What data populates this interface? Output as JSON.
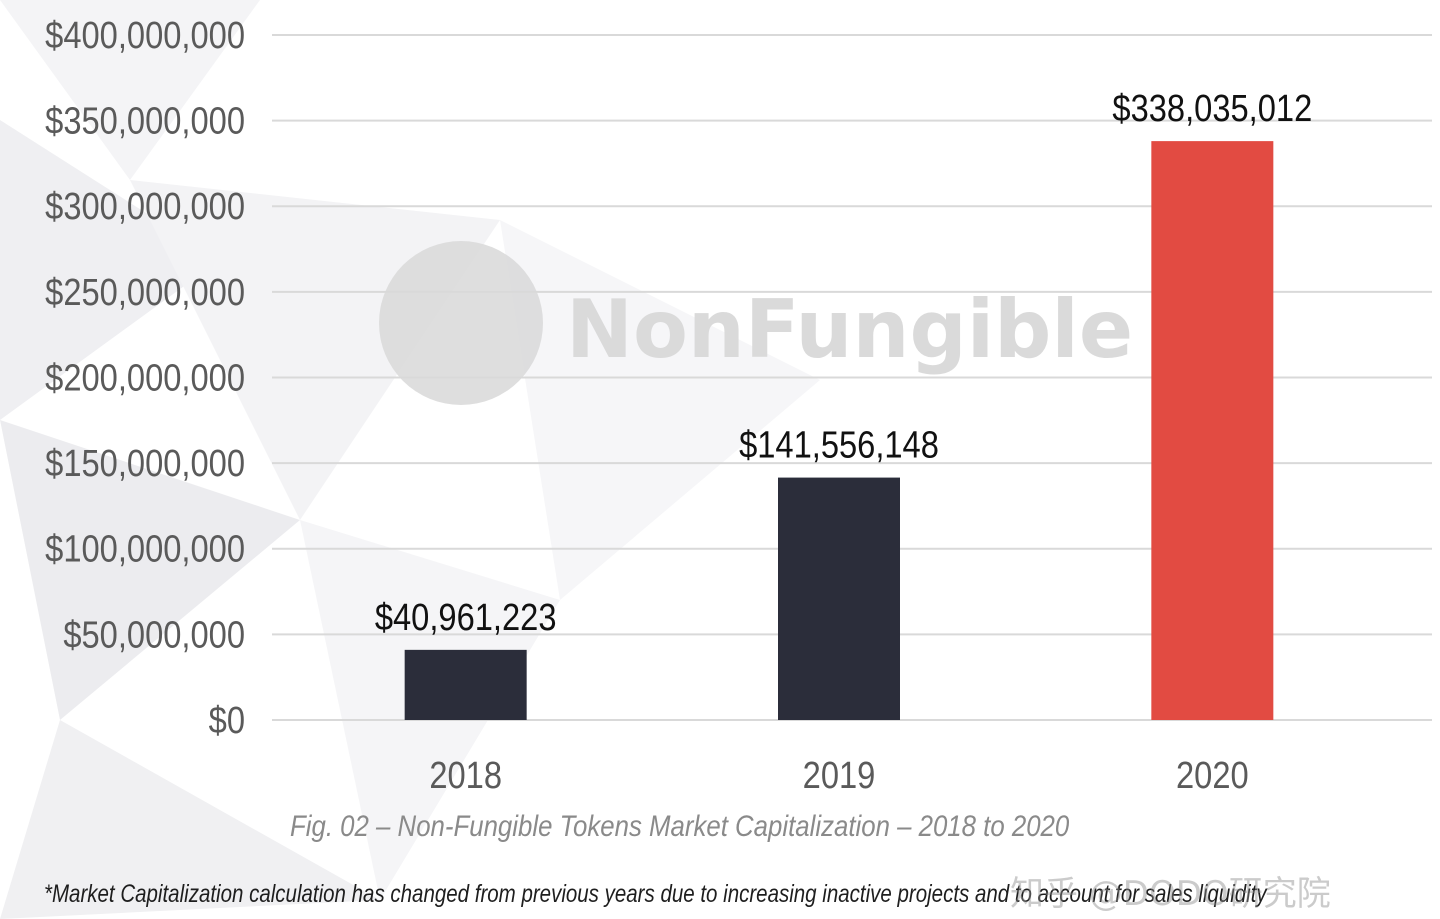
{
  "watermark": {
    "text": "NonFungible"
  },
  "chart_data": {
    "type": "bar",
    "categories": [
      "2018",
      "2019",
      "2020"
    ],
    "values": [
      40961223,
      141556148,
      338035012
    ],
    "data_labels": [
      "$40,961,223",
      "$141,556,148",
      "$338,035,012"
    ],
    "ylim": [
      0,
      400000000
    ],
    "yticks": [
      0,
      50000000,
      100000000,
      150000000,
      200000000,
      250000000,
      300000000,
      350000000,
      400000000
    ],
    "ytick_labels": [
      "$0",
      "$50,000,000",
      "$100,000,000",
      "$150,000,000",
      "$200,000,000",
      "$250,000,000",
      "$300,000,000",
      "$350,000,000",
      "$400,000,000"
    ],
    "grid": true,
    "bar_colors": [
      "#2b2d3a",
      "#2b2d3a",
      "#e24b42"
    ],
    "title": "",
    "xlabel": "",
    "ylabel": ""
  },
  "caption": "Fig. 02 – Non-Fungible Tokens Market Capitalization – 2018 to 2020",
  "footnote": "*Market Capitalization calculation has changed from previous years due to increasing inactive projects and to account for sales liquidity",
  "brand_watermark": "知乎 @DODO研究院"
}
